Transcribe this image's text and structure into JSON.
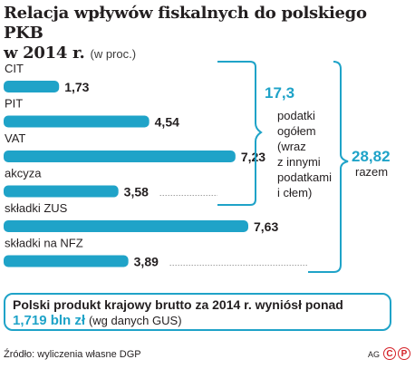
{
  "title": {
    "line1": "Relacja wpływów fiskalnych do polskiego PKB",
    "line2": "w 2014 r.",
    "unit": "(w proc.)"
  },
  "chart_data": {
    "type": "bar",
    "orientation": "horizontal",
    "categories": [
      "CIT",
      "PIT",
      "VAT",
      "akcyza",
      "składki ZUS",
      "składki na NFZ"
    ],
    "values": [
      1.73,
      4.54,
      7.23,
      3.58,
      7.63,
      3.89
    ],
    "value_labels": [
      "1,73",
      "4,54",
      "7,23",
      "3,58",
      "7,63",
      "3,89"
    ],
    "bar_color": "#1fa3c8",
    "annotations": {
      "taxes_total": "17,3",
      "taxes_text": [
        "podatki",
        "ogółem",
        "(wraz",
        "z innymi",
        "podatkami",
        "i cłem)"
      ],
      "grand_total": "28,82",
      "grand_total_text": "razem"
    }
  },
  "gdp_box": {
    "line1": "Polski produkt krajowy brutto za 2014 r. wyniósł ponad",
    "value": "1,719 bln zł",
    "note": "(wg danych GUS)"
  },
  "footer": {
    "source": "Źródło: wyliczenia własne DGP",
    "author": "AG",
    "logo_c": "C",
    "logo_p": "P"
  }
}
